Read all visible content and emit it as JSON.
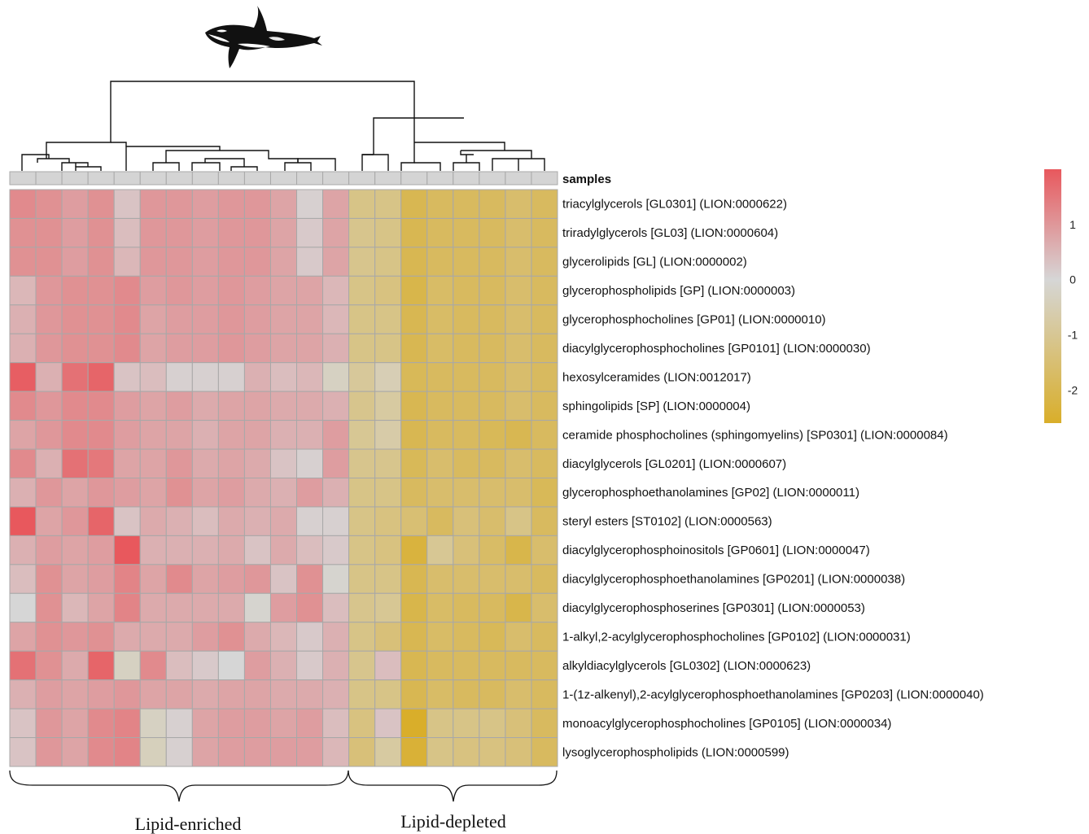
{
  "chart_data": {
    "type": "heatmap",
    "title": "",
    "column_annotation_label": "samples",
    "rows": [
      "triacylglycerols [GL0301] (LION:0000622)",
      "triradylglycerols [GL03] (LION:0000604)",
      "glycerolipids [GL] (LION:0000002)",
      "glycerophospholipids [GP] (LION:0000003)",
      "glycerophosphocholines [GP01] (LION:0000010)",
      "diacylglycerophosphocholines [GP0101] (LION:0000030)",
      "hexosylceramides (LION:0012017)",
      "sphingolipids [SP] (LION:0000004)",
      "ceramide phosphocholines (sphingomyelins) [SP0301] (LION:0000084)",
      "diacylglycerols [GL0201] (LION:0000607)",
      "glycerophosphoethanolamines [GP02] (LION:0000011)",
      "steryl esters [ST0102] (LION:0000563)",
      "diacylglycerophosphoinositols [GP0601] (LION:0000047)",
      "diacylglycerophosphoethanolamines [GP0201] (LION:0000038)",
      "diacylglycerophosphoserines [GP0301] (LION:0000053)",
      "1-alkyl,2-acylglycerophosphocholines [GP0102] (LION:0000031)",
      "alkyldiacylglycerols [GL0302] (LION:0000623)",
      "1-(1z-alkenyl),2-acylglycerophosphoethanolamines [GP0203] (LION:0000040)",
      "monoacylglycerophosphocholines [GP0105] (LION:0000034)",
      "lysoglycerophospholipids (LION:0000599)"
    ],
    "n_columns": 21,
    "values": [
      [
        1.2,
        1.1,
        0.9,
        1.1,
        0.3,
        1.0,
        1.0,
        0.9,
        1.0,
        1.0,
        0.8,
        0.1,
        0.8,
        -1.2,
        -1.2,
        -2.0,
        -1.8,
        -1.8,
        -1.8,
        -1.6,
        -1.8
      ],
      [
        1.1,
        1.1,
        0.9,
        1.1,
        0.4,
        1.0,
        1.0,
        0.9,
        1.0,
        1.0,
        0.8,
        0.2,
        0.8,
        -1.1,
        -1.2,
        -2.0,
        -1.8,
        -1.8,
        -1.8,
        -1.6,
        -1.8
      ],
      [
        1.1,
        1.1,
        0.9,
        1.1,
        0.5,
        1.0,
        1.0,
        0.9,
        1.0,
        1.0,
        0.8,
        0.2,
        0.8,
        -1.1,
        -1.2,
        -2.0,
        -1.8,
        -1.8,
        -1.8,
        -1.6,
        -1.8
      ],
      [
        0.5,
        1.0,
        1.1,
        1.1,
        1.2,
        0.9,
        1.0,
        0.9,
        1.0,
        0.9,
        0.8,
        0.8,
        0.5,
        -1.2,
        -1.3,
        -2.1,
        -1.7,
        -1.8,
        -1.8,
        -1.6,
        -1.8
      ],
      [
        0.6,
        1.0,
        1.1,
        1.1,
        1.2,
        0.8,
        0.9,
        0.9,
        1.0,
        0.9,
        0.8,
        0.8,
        0.5,
        -1.2,
        -1.2,
        -2.0,
        -1.7,
        -1.8,
        -1.8,
        -1.6,
        -1.8
      ],
      [
        0.6,
        1.0,
        1.1,
        1.1,
        1.2,
        0.8,
        0.9,
        0.9,
        1.0,
        0.9,
        0.8,
        0.8,
        0.6,
        -1.2,
        -1.2,
        -2.0,
        -1.7,
        -1.8,
        -1.8,
        -1.6,
        -1.8
      ],
      [
        1.9,
        0.6,
        1.6,
        1.8,
        0.3,
        0.4,
        0.1,
        0.1,
        0.1,
        0.6,
        0.4,
        0.5,
        -0.3,
        -0.9,
        -0.5,
        -1.9,
        -1.8,
        -1.8,
        -1.8,
        -1.6,
        -1.8
      ],
      [
        1.2,
        1.0,
        1.2,
        1.2,
        0.9,
        0.8,
        0.9,
        0.7,
        0.8,
        0.8,
        0.7,
        0.7,
        0.6,
        -1.1,
        -0.8,
        -2.0,
        -1.8,
        -1.8,
        -1.8,
        -1.6,
        -1.8
      ],
      [
        0.8,
        1.0,
        1.2,
        1.2,
        0.9,
        0.8,
        0.8,
        0.6,
        0.8,
        0.8,
        0.6,
        0.6,
        0.9,
        -1.0,
        -0.7,
        -2.0,
        -1.8,
        -1.8,
        -1.9,
        -2.0,
        -1.8
      ],
      [
        1.2,
        0.6,
        1.6,
        1.5,
        0.8,
        0.8,
        1.0,
        0.7,
        0.8,
        0.7,
        0.3,
        0.1,
        0.9,
        -1.1,
        -1.1,
        -1.9,
        -1.6,
        -1.8,
        -1.8,
        -1.6,
        -1.8
      ],
      [
        0.6,
        1.0,
        0.8,
        1.0,
        0.9,
        0.8,
        1.1,
        0.8,
        0.9,
        0.7,
        0.6,
        0.9,
        0.6,
        -1.2,
        -1.2,
        -1.8,
        -1.6,
        -1.6,
        -1.6,
        -1.6,
        -1.9
      ],
      [
        2.0,
        0.8,
        1.0,
        1.8,
        0.3,
        0.7,
        0.6,
        0.4,
        0.7,
        0.6,
        0.7,
        0.1,
        0.1,
        -1.2,
        -1.3,
        -1.5,
        -1.8,
        -1.4,
        -1.6,
        -1.2,
        -1.8
      ],
      [
        0.6,
        0.9,
        0.8,
        0.9,
        2.0,
        0.6,
        0.6,
        0.6,
        0.7,
        0.3,
        0.7,
        0.4,
        0.2,
        -1.2,
        -1.3,
        -2.3,
        -1.0,
        -1.4,
        -1.7,
        -2.1,
        -1.6
      ],
      [
        0.4,
        1.1,
        0.8,
        0.9,
        1.3,
        0.8,
        1.2,
        0.8,
        0.9,
        1.0,
        0.3,
        1.1,
        -0.1,
        -1.2,
        -1.2,
        -2.0,
        -1.6,
        -1.6,
        -1.6,
        -1.6,
        -1.8
      ],
      [
        0.0,
        1.1,
        0.5,
        0.8,
        1.3,
        0.7,
        0.7,
        0.7,
        0.7,
        -0.1,
        0.9,
        1.1,
        0.4,
        -1.1,
        -1.0,
        -2.1,
        -1.7,
        -1.8,
        -1.8,
        -2.1,
        -1.6
      ],
      [
        0.8,
        1.1,
        1.0,
        1.1,
        0.7,
        0.7,
        0.7,
        0.9,
        1.1,
        0.7,
        0.5,
        0.2,
        0.6,
        -1.2,
        -1.4,
        -2.0,
        -1.7,
        -1.8,
        -1.9,
        -1.6,
        -1.8
      ],
      [
        1.6,
        1.1,
        0.7,
        1.8,
        -0.3,
        1.2,
        0.4,
        0.2,
        0.0,
        0.9,
        0.6,
        0.2,
        0.6,
        -1.1,
        0.4,
        -2.0,
        -1.8,
        -1.8,
        -1.8,
        -1.8,
        -1.8
      ],
      [
        0.6,
        0.9,
        0.8,
        0.9,
        1.0,
        0.8,
        0.8,
        0.7,
        0.8,
        0.8,
        0.7,
        0.7,
        0.6,
        -1.2,
        -1.2,
        -2.0,
        -1.7,
        -1.8,
        -1.8,
        -1.6,
        -1.8
      ],
      [
        0.3,
        1.0,
        0.8,
        1.2,
        1.3,
        -0.3,
        0.1,
        0.8,
        0.9,
        0.9,
        0.8,
        0.9,
        0.4,
        -1.3,
        0.3,
        -2.6,
        -1.2,
        -1.2,
        -1.2,
        -1.4,
        -1.8
      ],
      [
        0.3,
        1.0,
        0.8,
        1.2,
        1.3,
        -0.4,
        0.1,
        0.8,
        0.9,
        0.9,
        0.9,
        0.9,
        0.5,
        -1.4,
        -0.8,
        -2.4,
        -1.2,
        -1.3,
        -1.3,
        -1.4,
        -1.8
      ]
    ],
    "color_scale": {
      "low": "#d9ae2a",
      "mid": "#d6d6d6",
      "high": "#e8585d",
      "min": -2.6,
      "max": 2.0
    },
    "legend": {
      "ticks": [
        1,
        0,
        -1,
        -2
      ],
      "placement": "right"
    },
    "column_groups": [
      {
        "label": "Lipid-enriched",
        "columns": [
          1,
          13
        ]
      },
      {
        "label": "Lipid-depleted",
        "columns": [
          14,
          21
        ]
      }
    ],
    "annotation_color": "#d4d4d4",
    "grid_color": "#a8a8a8",
    "icon": "orca-icon"
  }
}
